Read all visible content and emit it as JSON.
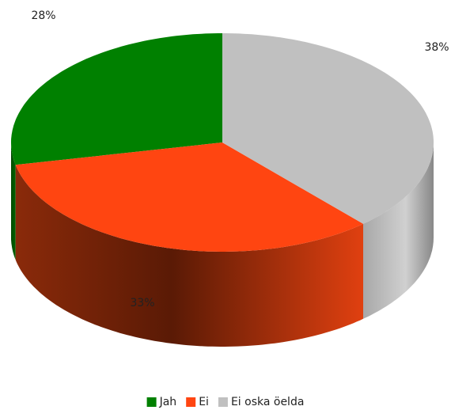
{
  "chart_data": {
    "type": "pie3d",
    "categories": [
      "Jah",
      "Ei",
      "Ei oska öelda"
    ],
    "values": [
      28,
      33,
      38
    ],
    "value_labels": [
      "28%",
      "33%",
      "38%"
    ],
    "colors": [
      "#008000",
      "#ff4511",
      "#c0c0c0"
    ],
    "legend": "bottom"
  }
}
